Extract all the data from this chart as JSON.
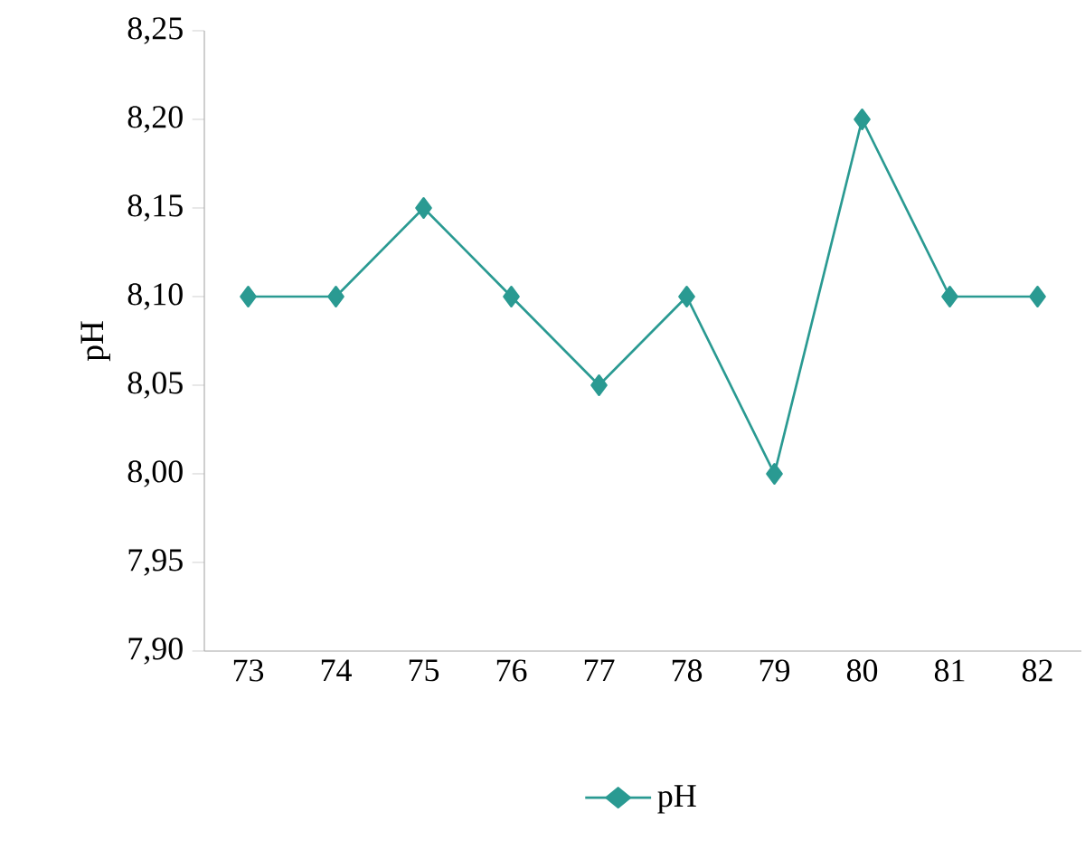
{
  "chart_data": {
    "type": "line",
    "ylabel": "pH",
    "categories": [
      "73",
      "74",
      "75",
      "76",
      "77",
      "78",
      "79",
      "80",
      "81",
      "82"
    ],
    "series": [
      {
        "name": "pH",
        "color": "#2a9a92",
        "values": [
          8.1,
          8.1,
          8.15,
          8.1,
          8.05,
          8.1,
          8.0,
          8.2,
          8.1,
          8.1
        ]
      }
    ],
    "ylim": [
      7.9,
      8.25
    ],
    "yticks": [
      {
        "value": 7.9,
        "label": "7,90"
      },
      {
        "value": 7.95,
        "label": "7,95"
      },
      {
        "value": 8.0,
        "label": "8,00"
      },
      {
        "value": 8.05,
        "label": "8,05"
      },
      {
        "value": 8.1,
        "label": "8,10"
      },
      {
        "value": 8.15,
        "label": "8,15"
      },
      {
        "value": 8.2,
        "label": "8,20"
      },
      {
        "value": 8.25,
        "label": "8,25"
      }
    ],
    "marker": "diamond",
    "legend": "bottom"
  }
}
